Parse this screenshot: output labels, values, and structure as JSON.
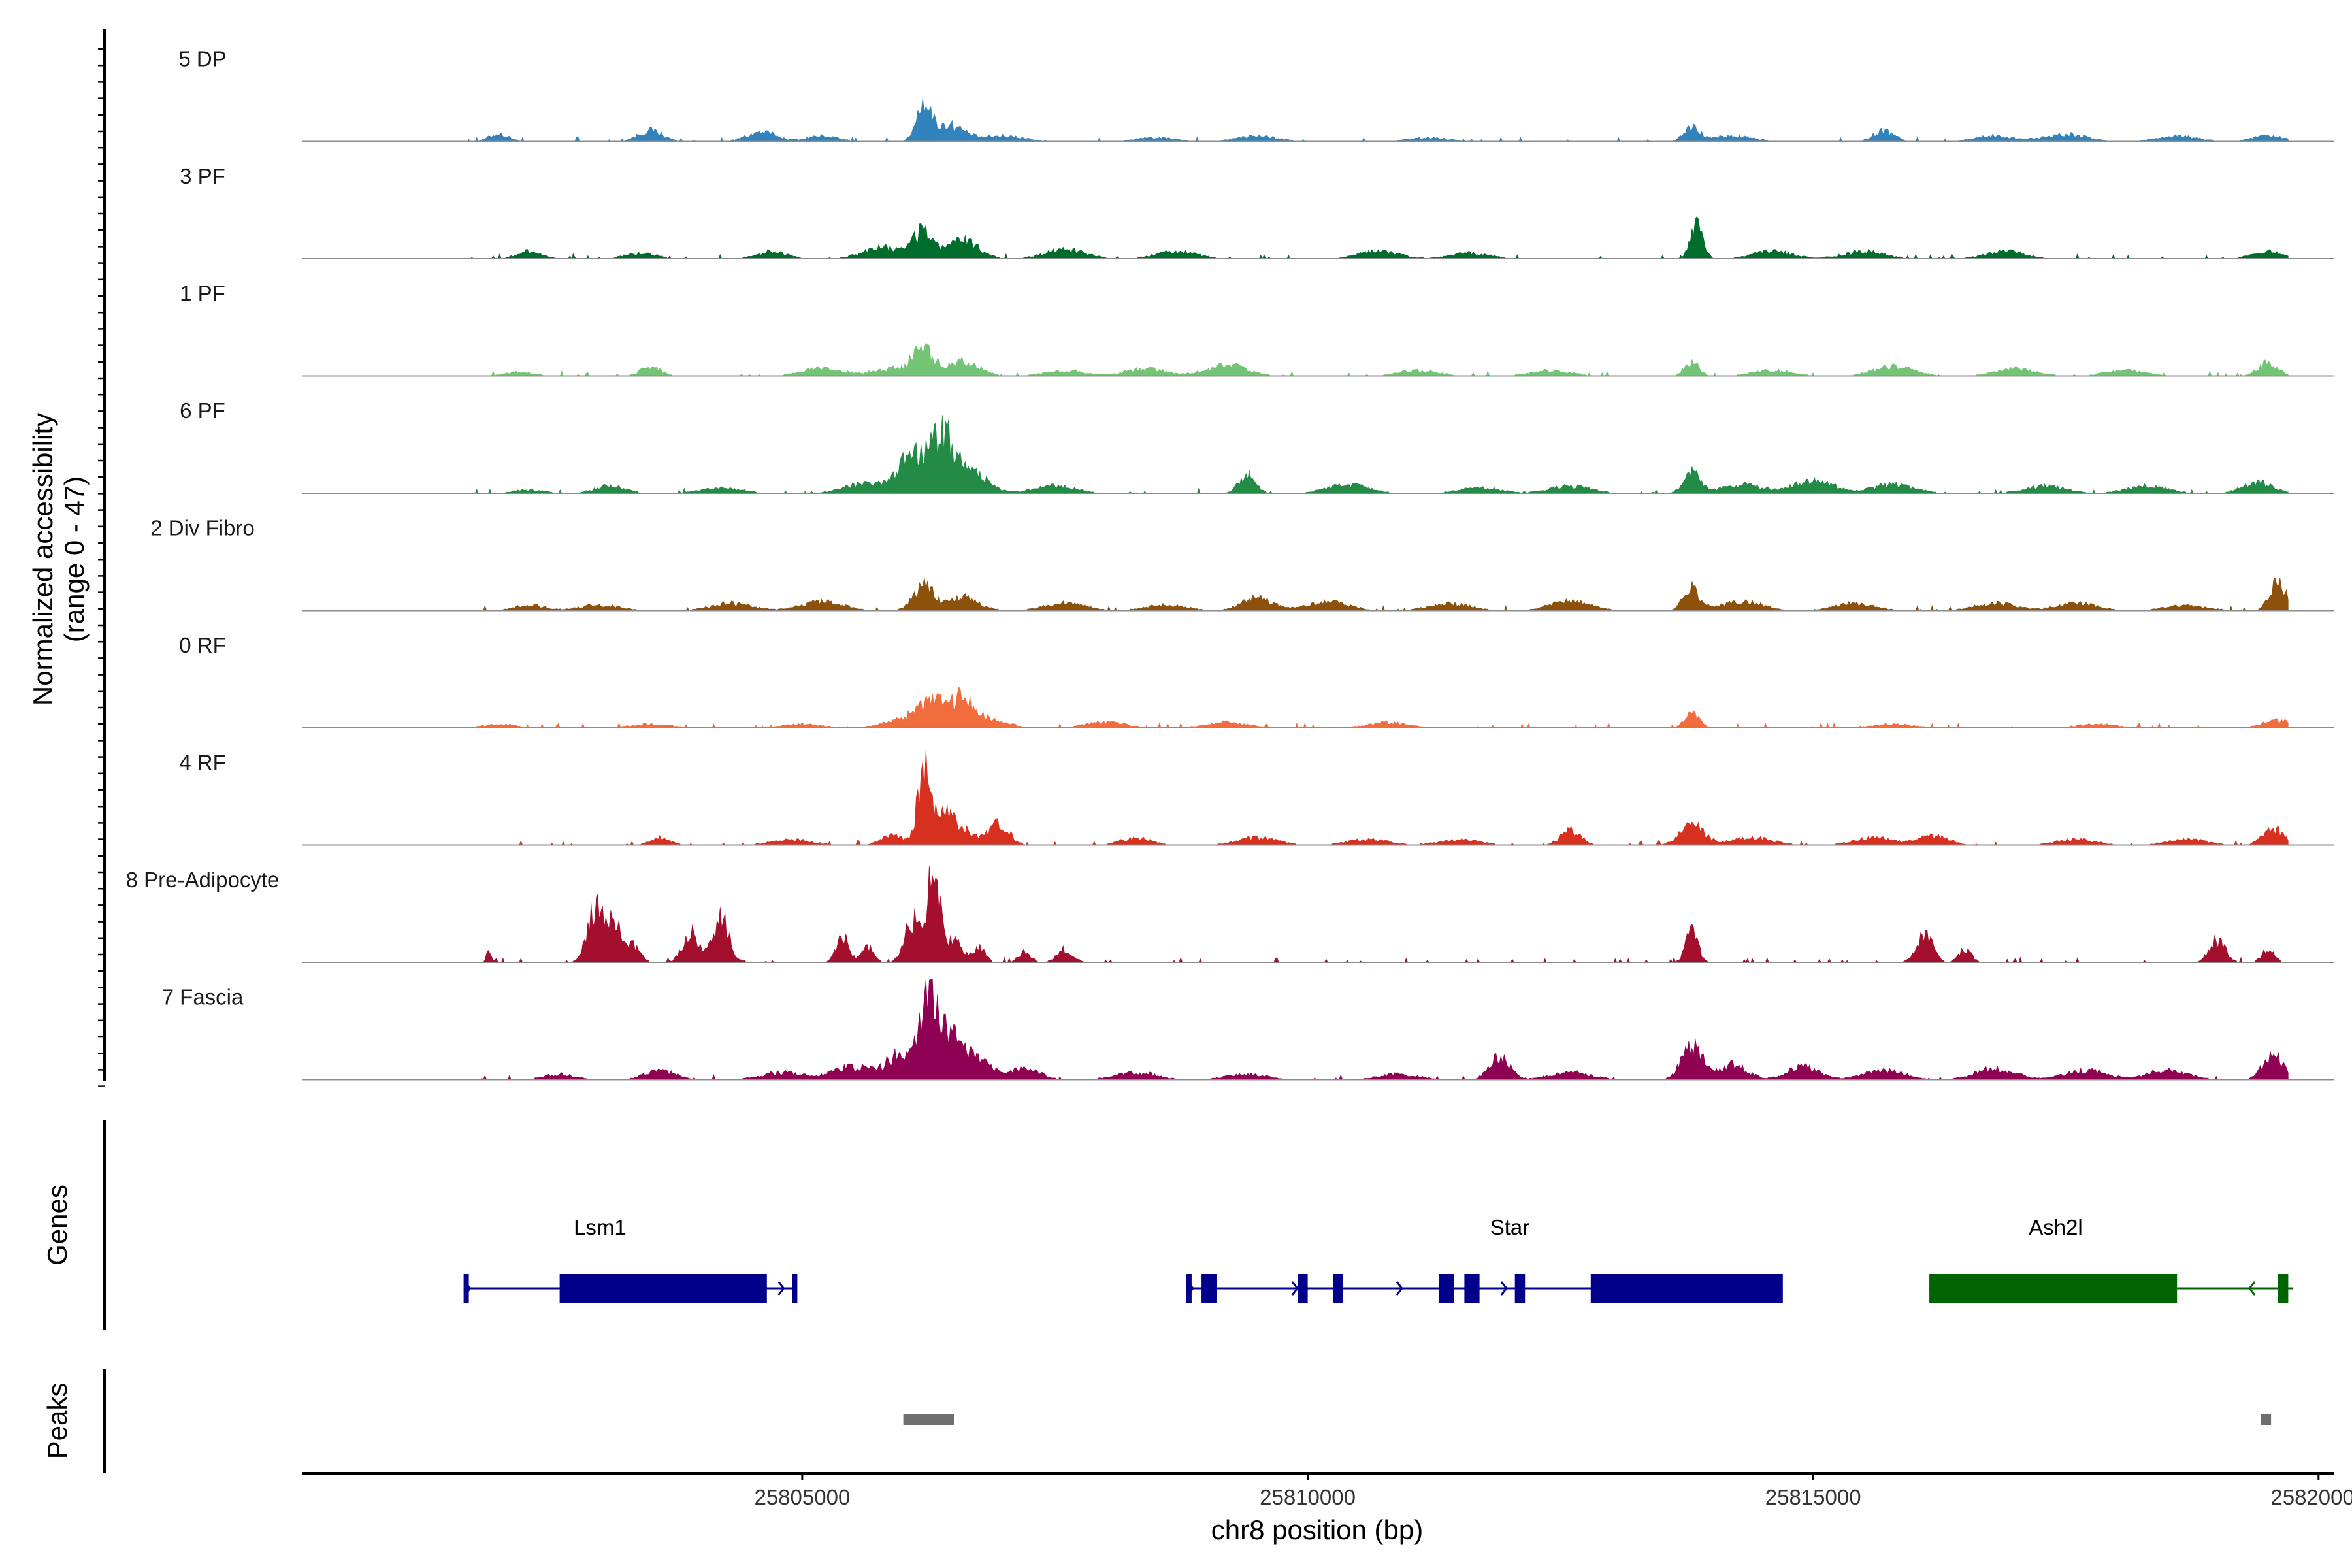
{
  "chart_data": {
    "type": "coverage-track",
    "chromosome": "chr8",
    "xlabel": "chr8 position (bp)",
    "ylabel": "Normalized accessibility",
    "ylabel_range": "(range 0 - 47)",
    "ylim": [
      0,
      47
    ],
    "xlim": [
      25800050,
      25820150
    ],
    "region": [
      25801700,
      25819700
    ],
    "x_ticks": [
      25805000,
      25810000,
      25815000,
      25820000
    ],
    "x_tick_labels": [
      "25805000",
      "25810000",
      "25815000",
      "25820000"
    ],
    "groups": [
      {
        "name": "5 DP",
        "color": "#3182bd",
        "peaks": [
          [
            25802000,
            4,
            100
          ],
          [
            25803500,
            6,
            120
          ],
          [
            25804600,
            5,
            150
          ],
          [
            25805200,
            3,
            150
          ],
          [
            25806200,
            20,
            70
          ],
          [
            25806450,
            9,
            150
          ],
          [
            25807000,
            3,
            200
          ],
          [
            25808500,
            2,
            200
          ],
          [
            25809500,
            3,
            200
          ],
          [
            25811200,
            2,
            200
          ],
          [
            25813800,
            7,
            80
          ],
          [
            25814200,
            3,
            200
          ],
          [
            25815700,
            6,
            100
          ],
          [
            25816800,
            3,
            200
          ],
          [
            25817500,
            4,
            200
          ],
          [
            25818600,
            3,
            200
          ],
          [
            25819500,
            3,
            150
          ]
        ]
      },
      {
        "name": "3 PF",
        "color": "#006d2c",
        "peaks": [
          [
            25802300,
            4,
            120
          ],
          [
            25803400,
            3,
            150
          ],
          [
            25804700,
            4,
            150
          ],
          [
            25805800,
            6,
            200
          ],
          [
            25806200,
            14,
            100
          ],
          [
            25806600,
            10,
            150
          ],
          [
            25807600,
            5,
            200
          ],
          [
            25808700,
            4,
            200
          ],
          [
            25810700,
            4,
            200
          ],
          [
            25811600,
            3,
            200
          ],
          [
            25813850,
            19,
            60
          ],
          [
            25814600,
            4,
            200
          ],
          [
            25815500,
            4,
            200
          ],
          [
            25816900,
            4,
            200
          ],
          [
            25819500,
            4,
            150
          ]
        ]
      },
      {
        "name": "1 PF",
        "color": "#74c476",
        "peaks": [
          [
            25802200,
            2,
            150
          ],
          [
            25803500,
            5,
            100
          ],
          [
            25805200,
            4,
            200
          ],
          [
            25805900,
            4,
            200
          ],
          [
            25806200,
            15,
            100
          ],
          [
            25806600,
            8,
            150
          ],
          [
            25807600,
            3,
            200
          ],
          [
            25808400,
            4,
            200
          ],
          [
            25809200,
            6,
            200
          ],
          [
            25811100,
            3,
            200
          ],
          [
            25812400,
            3,
            200
          ],
          [
            25813800,
            8,
            70
          ],
          [
            25814600,
            3,
            200
          ],
          [
            25815800,
            5,
            200
          ],
          [
            25817000,
            4,
            200
          ],
          [
            25818100,
            3,
            200
          ],
          [
            25819500,
            7,
            100
          ]
        ]
      },
      {
        "name": "6 PF",
        "color": "#238b45",
        "peaks": [
          [
            25802300,
            2,
            150
          ],
          [
            25803100,
            4,
            150
          ],
          [
            25804200,
            3,
            200
          ],
          [
            25805600,
            5,
            200
          ],
          [
            25806100,
            20,
            150
          ],
          [
            25806400,
            29,
            120
          ],
          [
            25806700,
            10,
            150
          ],
          [
            25807500,
            4,
            200
          ],
          [
            25809400,
            10,
            80
          ],
          [
            25810400,
            5,
            200
          ],
          [
            25811700,
            3,
            200
          ],
          [
            25812600,
            4,
            200
          ],
          [
            25813800,
            11,
            80
          ],
          [
            25814300,
            5,
            200
          ],
          [
            25815000,
            7,
            200
          ],
          [
            25815800,
            5,
            200
          ],
          [
            25817300,
            4,
            200
          ],
          [
            25818300,
            4,
            200
          ],
          [
            25819400,
            6,
            150
          ]
        ]
      },
      {
        "name": "2 Div Fibro",
        "color": "#8c510a",
        "peaks": [
          [
            25802300,
            3,
            150
          ],
          [
            25803000,
            3,
            200
          ],
          [
            25804300,
            4,
            200
          ],
          [
            25805200,
            5,
            200
          ],
          [
            25806200,
            14,
            100
          ],
          [
            25806600,
            7,
            150
          ],
          [
            25807600,
            4,
            200
          ],
          [
            25808600,
            3,
            200
          ],
          [
            25809500,
            7,
            150
          ],
          [
            25810200,
            5,
            200
          ],
          [
            25811400,
            4,
            200
          ],
          [
            25812600,
            5,
            200
          ],
          [
            25813800,
            12,
            80
          ],
          [
            25814300,
            5,
            200
          ],
          [
            25815400,
            4,
            200
          ],
          [
            25816800,
            4,
            200
          ],
          [
            25817600,
            4,
            200
          ],
          [
            25818700,
            3,
            200
          ],
          [
            25819600,
            15,
            80
          ]
        ]
      },
      {
        "name": "0 RF",
        "color": "#f16d3e",
        "peaks": [
          [
            25802000,
            2,
            150
          ],
          [
            25803500,
            2,
            200
          ],
          [
            25805000,
            2,
            200
          ],
          [
            25806000,
            4,
            200
          ],
          [
            25806300,
            13,
            150
          ],
          [
            25806600,
            14,
            120
          ],
          [
            25806900,
            4,
            150
          ],
          [
            25808000,
            3,
            200
          ],
          [
            25809200,
            3,
            200
          ],
          [
            25810800,
            3,
            200
          ],
          [
            25813800,
            8,
            70
          ],
          [
            25815800,
            2,
            200
          ],
          [
            25817800,
            2,
            200
          ],
          [
            25819600,
            4,
            150
          ]
        ]
      },
      {
        "name": "4 RF",
        "color": "#d7301f",
        "peaks": [
          [
            25803600,
            4,
            100
          ],
          [
            25804900,
            3,
            200
          ],
          [
            25805900,
            5,
            120
          ],
          [
            25806200,
            40,
            60
          ],
          [
            25806400,
            16,
            100
          ],
          [
            25806600,
            7,
            120
          ],
          [
            25806950,
            11,
            100
          ],
          [
            25808300,
            4,
            150
          ],
          [
            25809500,
            4,
            200
          ],
          [
            25810600,
            3,
            200
          ],
          [
            25811500,
            3,
            200
          ],
          [
            25812600,
            8,
            100
          ],
          [
            25813800,
            11,
            120
          ],
          [
            25814400,
            4,
            200
          ],
          [
            25815600,
            4,
            200
          ],
          [
            25816200,
            5,
            150
          ],
          [
            25817600,
            3,
            200
          ],
          [
            25818700,
            3,
            200
          ],
          [
            25819550,
            9,
            100
          ]
        ]
      },
      {
        "name": "8 Pre-Adipocyte",
        "color": "#a50f2e",
        "peaks": [
          [
            25801900,
            8,
            20
          ],
          [
            25802950,
            28,
            80
          ],
          [
            25803150,
            20,
            80
          ],
          [
            25803350,
            8,
            60
          ],
          [
            25803900,
            16,
            80
          ],
          [
            25804200,
            23,
            80
          ],
          [
            25805400,
            14,
            60
          ],
          [
            25805650,
            8,
            60
          ],
          [
            25806100,
            24,
            80
          ],
          [
            25806300,
            47,
            60
          ],
          [
            25806500,
            12,
            80
          ],
          [
            25806750,
            8,
            60
          ],
          [
            25807200,
            6,
            60
          ],
          [
            25807600,
            7,
            80
          ],
          [
            25813800,
            16,
            60
          ],
          [
            25816100,
            15,
            80
          ],
          [
            25816500,
            8,
            60
          ],
          [
            25819000,
            12,
            80
          ],
          [
            25819500,
            7,
            60
          ]
        ]
      },
      {
        "name": "7 Fascia",
        "color": "#8f0152",
        "peaks": [
          [
            25802600,
            3,
            150
          ],
          [
            25803600,
            5,
            150
          ],
          [
            25804800,
            4,
            200
          ],
          [
            25805500,
            7,
            200
          ],
          [
            25806000,
            15,
            150
          ],
          [
            25806250,
            47,
            70
          ],
          [
            25806450,
            25,
            100
          ],
          [
            25806700,
            12,
            150
          ],
          [
            25807200,
            6,
            150
          ],
          [
            25808300,
            4,
            200
          ],
          [
            25809400,
            3,
            200
          ],
          [
            25810900,
            3,
            200
          ],
          [
            25811900,
            12,
            100
          ],
          [
            25812600,
            4,
            200
          ],
          [
            25813800,
            18,
            100
          ],
          [
            25814200,
            8,
            150
          ],
          [
            25814900,
            7,
            150
          ],
          [
            25815700,
            5,
            200
          ],
          [
            25816800,
            6,
            200
          ],
          [
            25817700,
            5,
            200
          ],
          [
            25818500,
            5,
            200
          ],
          [
            25819550,
            13,
            100
          ]
        ]
      }
    ],
    "genes_track_label": "Genes",
    "genes": [
      {
        "name": "Lsm1",
        "color": "#00008b",
        "strand": "+",
        "label_pos": 25803000,
        "start": 25801650,
        "end": 25804950,
        "exons": [
          [
            25801650,
            25801700
          ],
          [
            25802600,
            25804650
          ],
          [
            25804900,
            25804950
          ]
        ]
      },
      {
        "name": "Star",
        "color": "#00008b",
        "strand": "+",
        "label_pos": 25812000,
        "start": 25808800,
        "end": 25814700,
        "exons": [
          [
            25808800,
            25808850
          ],
          [
            25808950,
            25809100
          ],
          [
            25809900,
            25810000
          ],
          [
            25810250,
            25810350
          ],
          [
            25811300,
            25811450
          ],
          [
            25811550,
            25811700
          ],
          [
            25812050,
            25812150
          ],
          [
            25812800,
            25814700
          ]
        ]
      },
      {
        "name": "Ash2l",
        "color": "#006400",
        "strand": "-",
        "label_pos": 25817400,
        "start": 25816150,
        "end": 25819750,
        "exons": [
          [
            25816150,
            25818600
          ],
          [
            25819600,
            25819700
          ]
        ]
      }
    ],
    "peaks_track_label": "Peaks",
    "peak_regions": [
      [
        25806000,
        25806500
      ],
      [
        25819430,
        25819530
      ]
    ]
  }
}
